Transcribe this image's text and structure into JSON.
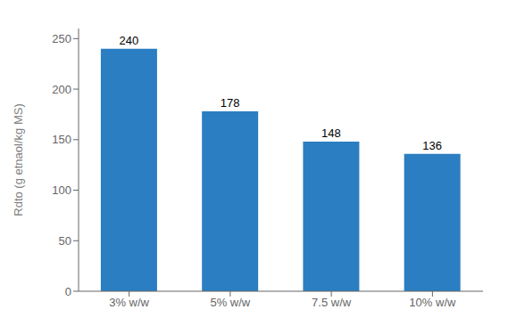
{
  "chart_data": {
    "type": "bar",
    "ylabel": "Rdto (g etnaol/kg MS)",
    "categories": [
      "3% w/w",
      "5% w/w",
      "7.5 w/w",
      "10% w/w"
    ],
    "values": [
      240,
      178,
      148,
      136
    ],
    "color": "#2B7EC1",
    "ylim": [
      0,
      260
    ],
    "yticks": [
      0,
      50,
      100,
      150,
      200,
      250
    ],
    "grid": false,
    "data_labels": true
  }
}
